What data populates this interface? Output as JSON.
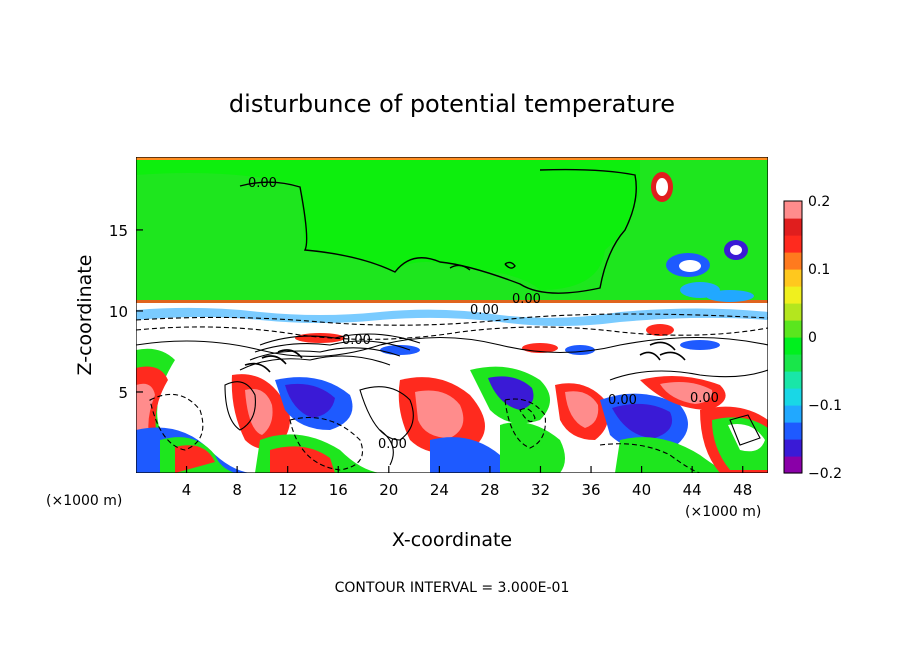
{
  "chart_data": {
    "type": "heatmap",
    "title": "disturbunce of potential temperature",
    "xlabel": "X-coordinate",
    "ylabel": "Z-coordinate",
    "x_unit": "(×1000 m)",
    "z_unit": "(×1000 m)",
    "xlim": [
      0,
      50
    ],
    "ylim": [
      0,
      19.5
    ],
    "x_ticks": [
      4,
      8,
      12,
      16,
      20,
      24,
      28,
      32,
      36,
      40,
      44,
      48
    ],
    "y_ticks": [
      5,
      10,
      15
    ],
    "colorbar": {
      "vmin": -0.2,
      "vmax": 0.2,
      "ticks": [
        0.2,
        0.1,
        0,
        -0.1,
        -0.2
      ],
      "tick_labels": [
        "0.2",
        "0.1",
        "0",
        "−0.1",
        "−0.2"
      ],
      "colors": [
        "#8a00a8",
        "#3a1ad6",
        "#1e5aff",
        "#21a8ff",
        "#19d7e6",
        "#19e6a8",
        "#19e64a",
        "#00f01e",
        "#5ae61e",
        "#b4e61e",
        "#f0f01e",
        "#ffc81e",
        "#ff7a1e",
        "#ff2a1e",
        "#e01e1e",
        "#ff8c8c"
      ]
    },
    "contour_labels": [
      "0.00",
      "0.00",
      "0.00",
      "0.00",
      "0.00",
      "0.00",
      "0.00"
    ],
    "footer": "CONTOUR INTERVAL = 3.000E-01"
  }
}
